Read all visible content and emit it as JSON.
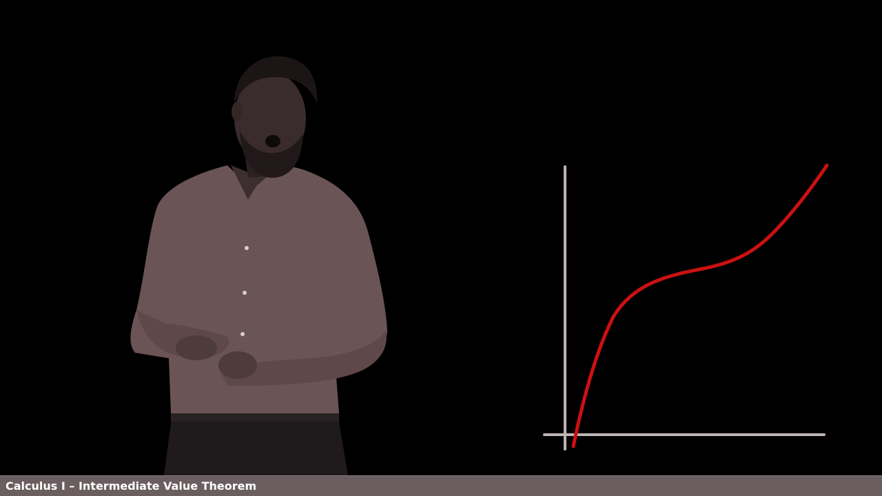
{
  "video": {
    "lower_third_title": "Calculus I – Intermediate Value Theorem"
  },
  "colors": {
    "background": "#000000",
    "presenter_shirt": "#6b5455",
    "graph_axes": "#bfb4b4",
    "graph_curve": "#cc1111",
    "lower_third_bar": "#6b5e60",
    "lower_third_text": "#ffffff"
  },
  "presenter": {
    "description_icon": "lecturer-figure"
  },
  "graph": {
    "curve_shape": "increasing-cubic-with-inflection"
  }
}
